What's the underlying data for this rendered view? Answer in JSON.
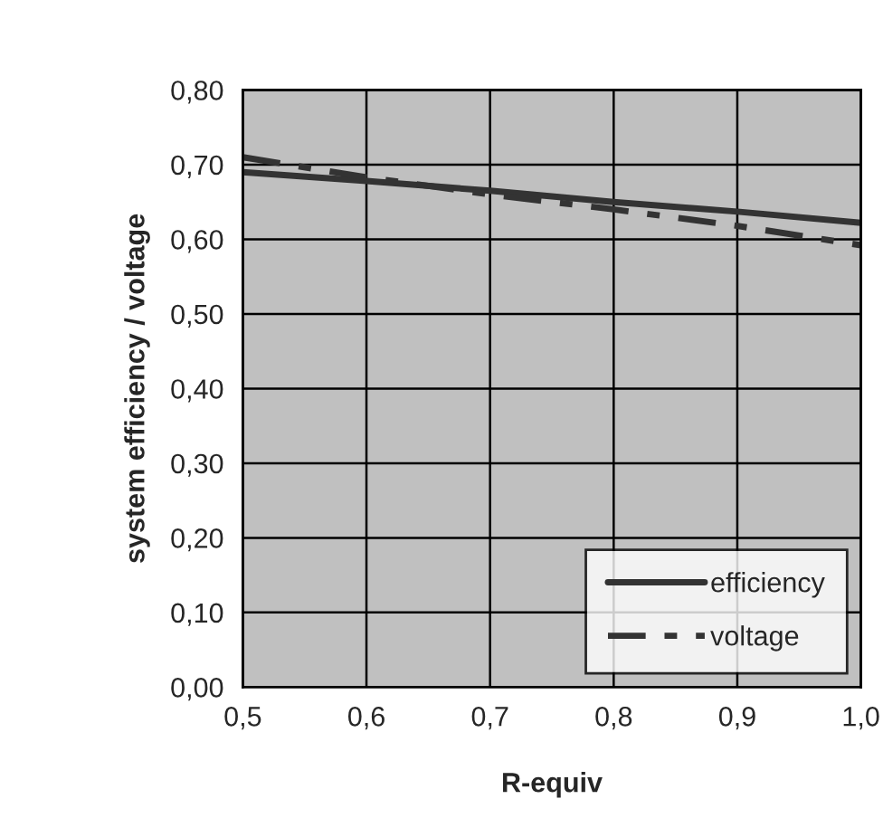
{
  "chart_data": {
    "type": "line",
    "xlabel": "R-equiv",
    "ylabel": "system efficiency / voltage",
    "x": [
      0.5,
      0.6,
      0.7,
      0.8,
      0.9,
      1.0
    ],
    "series": [
      {
        "name": "efficiency",
        "color": "#333333",
        "line_style": "solid",
        "values": [
          0.69,
          0.678,
          0.665,
          0.65,
          0.637,
          0.622
        ]
      },
      {
        "name": "voltage",
        "color": "#333333",
        "line_style": "dashed",
        "values": [
          0.71,
          0.683,
          0.66,
          0.64,
          0.618,
          0.592
        ]
      }
    ],
    "xlim": [
      0.5,
      1.0
    ],
    "xticks": [
      {
        "value": 0.5,
        "label": "0,5"
      },
      {
        "value": 0.6,
        "label": "0,6"
      },
      {
        "value": 0.7,
        "label": "0,7"
      },
      {
        "value": 0.8,
        "label": "0,8"
      },
      {
        "value": 0.9,
        "label": "0,9"
      },
      {
        "value": 1.0,
        "label": "1,0"
      }
    ],
    "ylim": [
      0,
      0.8
    ],
    "yticks": [
      {
        "value": 0,
        "label": "0,00"
      },
      {
        "value": 0.1,
        "label": "0,10"
      },
      {
        "value": 0.2,
        "label": "0,20"
      },
      {
        "value": 0.3,
        "label": "0,30"
      },
      {
        "value": 0.4,
        "label": "0,40"
      },
      {
        "value": 0.5,
        "label": "0,50"
      },
      {
        "value": 0.6,
        "label": "0,60"
      },
      {
        "value": 0.7,
        "label": "0,70"
      },
      {
        "value": 0.8,
        "label": "0,80"
      }
    ],
    "grid": true,
    "legend": "bottom right",
    "marker": "none"
  }
}
